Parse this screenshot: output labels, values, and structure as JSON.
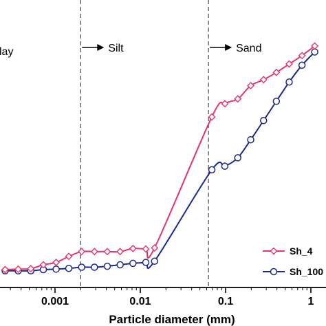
{
  "chart_data": {
    "type": "line",
    "title": "",
    "xlabel": "Particle diameter (mm)",
    "ylabel": "",
    "xscale": "log",
    "xlim": [
      0.0002,
      1.3
    ],
    "ylim": [
      0,
      100
    ],
    "x_ticks": [
      "0.001",
      "0.01",
      "0.1",
      "1"
    ],
    "x_tick_values": [
      0.001,
      0.01,
      0.1,
      1
    ],
    "grid": false,
    "legend_position": "bottom-right",
    "regions": [
      {
        "label": "lay",
        "arrow": false
      },
      {
        "label": "Silt",
        "arrow": true,
        "boundary": 0.002
      },
      {
        "label": "Sand",
        "arrow": true,
        "boundary": 0.063
      }
    ],
    "series": [
      {
        "name": "Sh_4",
        "color": "#e8336b",
        "marker": "diamond",
        "x": [
          0.00026,
          0.00037,
          0.00052,
          0.00073,
          0.00103,
          0.00145,
          0.00205,
          0.0029,
          0.0041,
          0.0058,
          0.0082,
          0.0116,
          0.0147,
          0.069,
          0.098,
          0.139,
          0.197,
          0.279,
          0.394,
          0.557,
          0.787,
          1.11
        ],
        "y": [
          6.0,
          6.2,
          6.4,
          8.0,
          9.0,
          11.5,
          13.5,
          13.5,
          13.5,
          13.5,
          14.8,
          14.6,
          15.0,
          69.5,
          75.0,
          77.0,
          82.5,
          85.0,
          88.0,
          91.5,
          95.0,
          99.0
        ]
      },
      {
        "name": "Sh_100",
        "color": "#1a2a8c",
        "marker": "circle",
        "x": [
          0.00026,
          0.00037,
          0.00052,
          0.00073,
          0.00103,
          0.00145,
          0.00205,
          0.0029,
          0.0041,
          0.0058,
          0.0082,
          0.0116,
          0.0147,
          0.069,
          0.098,
          0.139,
          0.197,
          0.279,
          0.394,
          0.557,
          0.787,
          1.11
        ],
        "y": [
          5.5,
          5.5,
          5.5,
          6.0,
          6.2,
          6.5,
          7.0,
          7.0,
          7.4,
          8.0,
          8.6,
          9.0,
          9.5,
          47.5,
          49.0,
          52.5,
          60.0,
          68.0,
          76.0,
          84.0,
          91.0,
          96.5
        ]
      }
    ]
  }
}
